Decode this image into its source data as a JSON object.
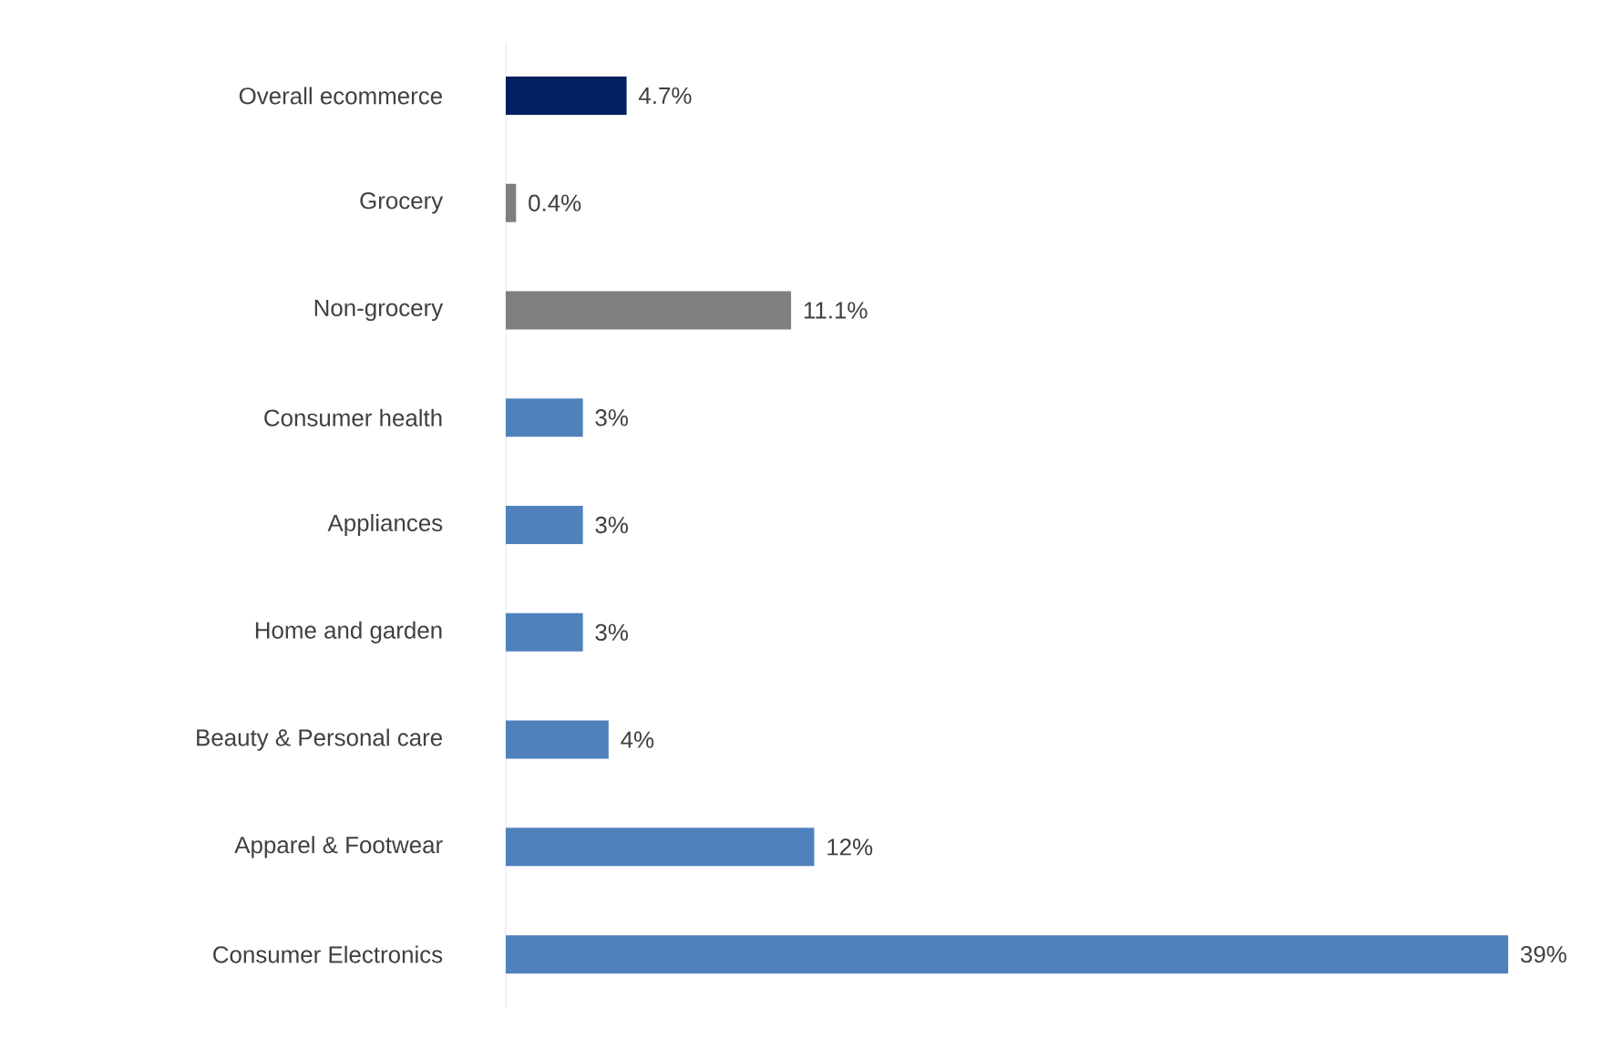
{
  "chart_data": {
    "type": "bar",
    "orientation": "horizontal",
    "categories": [
      "Overall ecommerce",
      "Grocery",
      "Non-grocery",
      "Consumer health",
      "Appliances",
      "Home and garden",
      "Beauty & Personal care",
      "Apparel & Footwear",
      "Consumer Electronics"
    ],
    "values": [
      4.7,
      0.4,
      11.1,
      3,
      3,
      3,
      4,
      12,
      39
    ],
    "value_labels": [
      "4.7%",
      "0.4%",
      "11.1%",
      "3%",
      "3%",
      "3%",
      "4%",
      "12%",
      "39%"
    ],
    "colors": [
      "#002060",
      "#7f7f7f",
      "#7f7f7f",
      "#4f81bd",
      "#4f81bd",
      "#4f81bd",
      "#4f81bd",
      "#4f81bd",
      "#4f81bd"
    ],
    "xlim": [
      0,
      39
    ],
    "tick_labels": "y"
  }
}
